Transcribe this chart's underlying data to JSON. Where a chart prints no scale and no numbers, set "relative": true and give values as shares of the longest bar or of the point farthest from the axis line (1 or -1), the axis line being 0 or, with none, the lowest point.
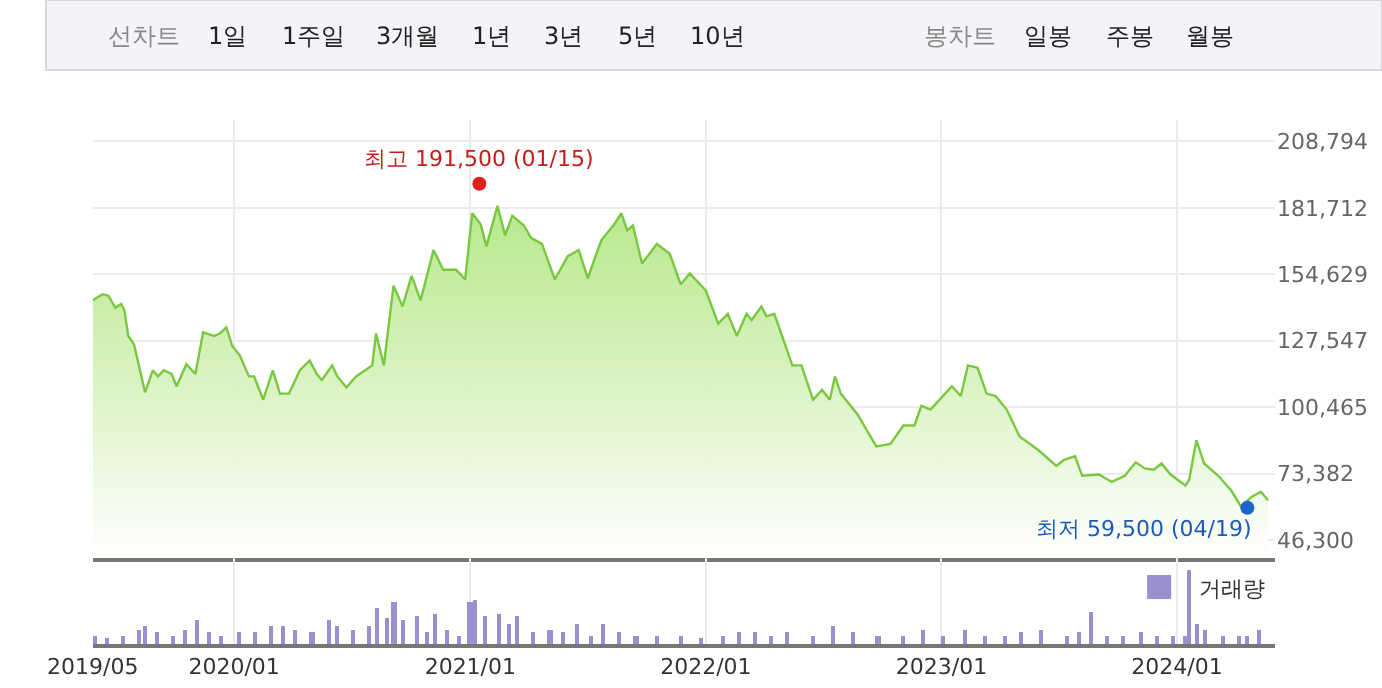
{
  "chart_data": [
    {
      "type": "other",
      "title": "선차트",
      "annotations": [
        "1일",
        "1주일",
        "3개월",
        "1년",
        "3년",
        "5년",
        "10년"
      ]
    },
    {
      "type": "other",
      "title": "봉차트",
      "annotations": [
        "일봉",
        "주봉",
        "월봉"
      ]
    },
    {
      "type": "area",
      "color": "#79c83f",
      "marker": "none",
      "line_style": "solid",
      "grid": true,
      "tick_labels": "y",
      "x": [
        "2019-05-27",
        "2019-06-11",
        "2019-06-20",
        "2019-07-01",
        "2019-07-10",
        "2019-07-15",
        "2019-07-21",
        "2019-07-30",
        "2019-08-13",
        "2019-08-16",
        "2019-08-28",
        "2019-09-05",
        "2019-09-14",
        "2019-09-26",
        "2019-10-04",
        "2019-10-19",
        "2019-11-02",
        "2019-11-14",
        "2019-12-01",
        "2019-12-10",
        "2019-12-20",
        "2019-12-29",
        "2020-01-10",
        "2020-01-24",
        "2020-02-01",
        "2020-02-15",
        "2020-03-01",
        "2020-03-12",
        "2020-03-26",
        "2020-04-12",
        "2020-04-27",
        "2020-05-08",
        "2020-05-16",
        "2020-06-01",
        "2020-06-09",
        "2020-06-23",
        "2020-07-08",
        "2020-08-02",
        "2020-08-08",
        "2020-08-20",
        "2020-09-04",
        "2020-09-18",
        "2020-10-02",
        "2020-10-16",
        "2020-11-05",
        "2020-11-20",
        "2020-12-10",
        "2020-12-24",
        "2021-01-04",
        "2021-01-17",
        "2021-01-26",
        "2021-02-12",
        "2021-02-24",
        "2021-03-07",
        "2021-03-25",
        "2021-04-05",
        "2021-04-22",
        "2021-05-12",
        "2021-06-01",
        "2021-06-18",
        "2021-07-02",
        "2021-07-14",
        "2021-07-23",
        "2021-08-12",
        "2021-08-23",
        "2021-09-01",
        "2021-09-10",
        "2021-09-24",
        "2021-10-17",
        "2021-11-06",
        "2021-11-23",
        "2021-12-07",
        "2022-01-01",
        "2022-01-20",
        "2022-02-04",
        "2022-02-18",
        "2022-03-05",
        "2022-03-13",
        "2022-03-28",
        "2022-04-05",
        "2022-04-17",
        "2022-05-15",
        "2022-05-29",
        "2022-06-16",
        "2022-06-30",
        "2022-07-12",
        "2022-07-20",
        "2022-07-29",
        "2022-08-24",
        "2022-09-22",
        "2022-10-14",
        "2022-11-03",
        "2022-11-20",
        "2022-12-01",
        "2022-12-15",
        "2022-12-24",
        "2023-01-17",
        "2023-01-31",
        "2023-02-11",
        "2023-02-26",
        "2023-03-12",
        "2023-03-26",
        "2023-04-12",
        "2023-05-02",
        "2023-05-31",
        "2023-06-28",
        "2023-07-10",
        "2023-07-27",
        "2023-08-07",
        "2023-09-02",
        "2023-09-22",
        "2023-10-12",
        "2023-10-29",
        "2023-11-12",
        "2023-11-26",
        "2023-12-08",
        "2023-12-22",
        "2024-01-14",
        "2024-01-20",
        "2024-01-31",
        "2024-02-12",
        "2024-03-05",
        "2024-03-25",
        "2024-04-09",
        "2024-04-26",
        "2024-05-10",
        "2024-05-21"
      ],
      "values": [
        144000,
        146500,
        146000,
        141000,
        142500,
        140000,
        129500,
        126000,
        110000,
        106500,
        115500,
        113000,
        115500,
        114000,
        109000,
        118000,
        114000,
        131000,
        129500,
        130500,
        133000,
        125500,
        121500,
        113000,
        113000,
        103500,
        115500,
        106000,
        106000,
        115500,
        119500,
        114000,
        111500,
        117500,
        113000,
        108500,
        113000,
        117500,
        130500,
        117500,
        150000,
        141500,
        154000,
        144000,
        164500,
        156500,
        156500,
        152500,
        179500,
        175000,
        166000,
        182500,
        170500,
        178500,
        174500,
        169500,
        167000,
        152500,
        162000,
        164500,
        153000,
        162000,
        168500,
        175000,
        179500,
        172500,
        174500,
        159000,
        167000,
        163000,
        150500,
        155000,
        148000,
        134500,
        138500,
        129500,
        138500,
        136000,
        141500,
        137500,
        138500,
        117500,
        117500,
        103500,
        107500,
        103500,
        113000,
        106000,
        97500,
        84500,
        85500,
        93000,
        93000,
        101000,
        99500,
        102000,
        109000,
        105000,
        117500,
        116500,
        106000,
        105000,
        99500,
        88500,
        83000,
        76500,
        79000,
        80500,
        72500,
        73000,
        70000,
        72500,
        78000,
        75500,
        75000,
        77500,
        73000,
        68500,
        71000,
        87000,
        77500,
        72500,
        66500,
        60000,
        64000,
        66000,
        62500
      ],
      "xlim": [
        "2019-05-27",
        "2024-06-01"
      ],
      "xticks": [
        {
          "value": "2019-05-27",
          "label": null
        },
        {
          "value": "2020-01-01",
          "label": null
        },
        {
          "value": "2021-01-01",
          "label": null
        },
        {
          "value": "2022-01-01",
          "label": null
        },
        {
          "value": "2023-01-01",
          "label": null
        },
        {
          "value": "2024-01-01",
          "label": null
        }
      ],
      "ylim": [
        39000,
        217500
      ],
      "yticks": [
        {
          "value": 46300,
          "label": "46,300"
        },
        {
          "value": 73382,
          "label": "73,382"
        },
        {
          "value": 100465,
          "label": "100,465"
        },
        {
          "value": 127547,
          "label": "127,547"
        },
        {
          "value": 154629,
          "label": "154,629"
        },
        {
          "value": 181712,
          "label": "181,712"
        },
        {
          "value": 208794,
          "label": "208,794"
        }
      ],
      "annotations": [
        {
          "text": "최고 191,500 (01/15)",
          "x": "2021-01-15",
          "y": 191500
        },
        {
          "text": "최저 59,500 (04/19)",
          "x": "2024-04-19",
          "y": 59500
        }
      ]
    },
    {
      "type": "bar",
      "relative": true,
      "legend": "top right",
      "grid": "x",
      "x": [
        "2019-05-30",
        "2019-06-18",
        "2019-07-14",
        "2019-08-08",
        "2019-08-15",
        "2019-09-03",
        "2019-09-28",
        "2019-10-17",
        "2019-11-05",
        "2019-11-24",
        "2019-12-13",
        "2020-01-08",
        "2020-02-02",
        "2020-02-28",
        "2020-03-18",
        "2020-04-06",
        "2020-05-01",
        "2020-05-27",
        "2020-06-08",
        "2020-07-04",
        "2020-07-29",
        "2020-08-11",
        "2020-08-24",
        "2020-09-05",
        "2020-09-18",
        "2020-10-11",
        "2020-10-26",
        "2020-11-08",
        "2020-11-27",
        "2020-12-16",
        "2021-01-01",
        "2021-01-10",
        "2021-01-23",
        "2021-02-14",
        "2021-03-02",
        "2021-03-15",
        "2021-04-09",
        "2021-05-05",
        "2021-05-24",
        "2021-06-16",
        "2021-07-07",
        "2021-07-26",
        "2021-08-21",
        "2021-09-15",
        "2021-10-17",
        "2021-11-24",
        "2021-12-26",
        "2022-01-27",
        "2022-02-21",
        "2022-03-19",
        "2022-04-13",
        "2022-05-08",
        "2022-06-15",
        "2022-07-17",
        "2022-08-18",
        "2022-09-25",
        "2022-11-02",
        "2022-12-04",
        "2023-01-05",
        "2023-02-06",
        "2023-03-09",
        "2023-04-10",
        "2023-05-06",
        "2023-06-06",
        "2023-07-14",
        "2023-08-02",
        "2023-08-22",
        "2023-09-16",
        "2023-10-11",
        "2023-11-06",
        "2023-12-01",
        "2023-12-27",
        "2024-01-15",
        "2024-01-21",
        "2024-01-31",
        "2024-02-15",
        "2024-03-12",
        "2024-04-06",
        "2024-04-19",
        "2024-05-08"
      ],
      "series": [
        {
          "name": "거래량",
          "color": "#9b8fd0",
          "values": [
            0.1,
            0.08,
            0.12,
            0.19,
            0.25,
            0.15,
            0.12,
            0.19,
            0.31,
            0.15,
            0.1,
            0.15,
            0.15,
            0.25,
            0.25,
            0.19,
            0.15,
            0.31,
            0.25,
            0.19,
            0.25,
            0.48,
            0.35,
            0.56,
            0.31,
            0.38,
            0.15,
            0.4,
            0.19,
            0.12,
            0.56,
            0.6,
            0.38,
            0.4,
            0.28,
            0.38,
            0.15,
            0.19,
            0.15,
            0.28,
            0.12,
            0.28,
            0.15,
            0.12,
            0.12,
            0.1,
            0.08,
            0.12,
            0.15,
            0.15,
            0.12,
            0.15,
            0.12,
            0.25,
            0.15,
            0.12,
            0.1,
            0.19,
            0.12,
            0.19,
            0.12,
            0.1,
            0.15,
            0.19,
            0.12,
            0.15,
            0.44,
            0.1,
            0.12,
            0.15,
            0.1,
            0.1,
            0.12,
            1,
            0.28,
            0.19,
            0.12,
            0.12,
            0.1,
            0.19
          ]
        }
      ],
      "xlim": [
        "2019-05-27",
        "2024-06-01"
      ],
      "xticks": [
        {
          "value": "2019-05-27",
          "label": "2019/05"
        },
        {
          "value": "2020-01-01",
          "label": "2020/01"
        },
        {
          "value": "2021-01-01",
          "label": "2021/01"
        },
        {
          "value": "2022-01-01",
          "label": "2022/01"
        },
        {
          "value": "2023-01-01",
          "label": "2023/01"
        },
        {
          "value": "2024-01-01",
          "label": "2024/01"
        }
      ]
    }
  ]
}
